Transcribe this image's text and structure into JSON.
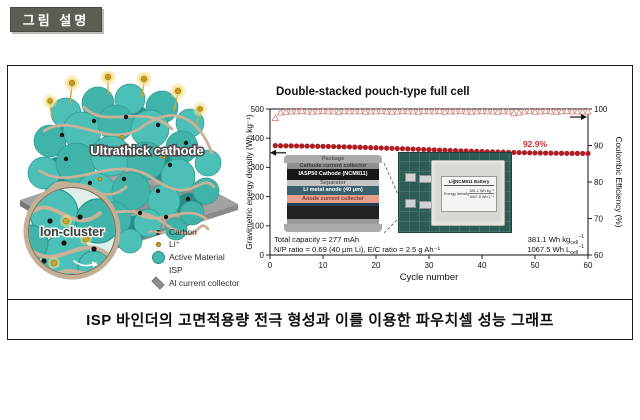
{
  "badge": {
    "label": "그림 설명"
  },
  "caption": "ISP 바인더의 고면적용량 전극 형성과 이를 이용한 파우치셀 성능 그래프",
  "illustration": {
    "cathode_label": "Ultrathick cathode",
    "cluster_label": "Ion-cluster",
    "legend": [
      {
        "id": "carbon",
        "label": "Carbon"
      },
      {
        "id": "li-ion",
        "label": "Li⁺"
      },
      {
        "id": "active-material",
        "label": "Active Material"
      },
      {
        "id": "isp",
        "label": "ISP"
      },
      {
        "id": "al-collector",
        "label": "Al current collector"
      }
    ]
  },
  "chart_data": {
    "type": "scatter",
    "title": "Double-stacked pouch-type full cell",
    "xlabel": "Cycle number",
    "ylabel_left": "Gravimetric energy density (Wh kg⁻¹)",
    "ylabel_right": "Coulombic Efficiency (%)",
    "xlim": [
      0,
      60
    ],
    "ylim_left": [
      0,
      500
    ],
    "ylim_right": [
      60,
      100
    ],
    "x_ticks": [
      0,
      10,
      20,
      30,
      40,
      50,
      60
    ],
    "left_ticks": [
      0,
      100,
      200,
      300,
      400,
      500
    ],
    "right_ticks": [
      60,
      70,
      80,
      90,
      100
    ],
    "x": [
      1,
      2,
      3,
      4,
      5,
      6,
      7,
      8,
      9,
      10,
      11,
      12,
      13,
      14,
      15,
      16,
      17,
      18,
      19,
      20,
      21,
      22,
      23,
      24,
      25,
      26,
      27,
      28,
      29,
      30,
      31,
      32,
      33,
      34,
      35,
      36,
      37,
      38,
      39,
      40,
      41,
      42,
      43,
      44,
      45,
      46,
      47,
      48,
      49,
      50,
      51,
      52,
      53,
      54,
      55,
      56,
      57,
      58,
      59,
      60
    ],
    "series": [
      {
        "name": "Coulombic Efficiency",
        "axis": "right",
        "marker": "triangle-open",
        "color": "#d98b82",
        "values": [
          97.5,
          99.0,
          99.2,
          99.3,
          99.3,
          99.4,
          99.3,
          99.2,
          99.3,
          99.4,
          99.3,
          99.3,
          99.2,
          99.4,
          99.3,
          99.3,
          99.4,
          99.2,
          99.3,
          99.3,
          99.4,
          99.3,
          99.2,
          99.3,
          99.4,
          99.3,
          99.3,
          99.2,
          99.4,
          99.3,
          99.3,
          99.4,
          99.2,
          99.3,
          99.3,
          99.4,
          99.3,
          99.2,
          99.3,
          99.4,
          99.3,
          99.3,
          99.2,
          99.4,
          99.3,
          98.8,
          99.0,
          99.3,
          99.4,
          99.2,
          99.3,
          99.4,
          99.3,
          99.2,
          99.3,
          99.4,
          99.3,
          99.3,
          99.2,
          99.3
        ]
      },
      {
        "name": "Gravimetric energy density",
        "axis": "left",
        "marker": "circle",
        "color": "#ae1d22",
        "values": [
          374.5,
          374.2,
          374.0,
          373.8,
          373.5,
          373.3,
          373.0,
          372.8,
          372.5,
          372.2,
          371.8,
          371.4,
          371.0,
          370.5,
          370.0,
          369.5,
          369.0,
          368.4,
          367.8,
          367.2,
          366.6,
          366.0,
          365.4,
          364.8,
          364.1,
          363.4,
          362.8,
          362.1,
          361.4,
          360.8,
          360.1,
          359.4,
          358.8,
          358.1,
          357.5,
          356.8,
          356.2,
          355.6,
          355.0,
          354.4,
          353.8,
          353.3,
          352.7,
          352.2,
          351.7,
          351.2,
          350.8,
          350.4,
          350.0,
          349.6,
          349.3,
          349.0,
          348.8,
          348.6,
          348.4,
          348.2,
          348.1,
          348.0,
          347.9,
          347.8
        ]
      }
    ],
    "annotations": {
      "retention": "92.9%",
      "total_capacity": "Total capacity = 277 mAh",
      "np_ratio": "N/P ratio = 0.69 (40 μm Li), E/C ratio = 2.5 g Ah⁻¹",
      "grav_cell": {
        "pre": "381.1 Wh kg",
        "sub": "cell",
        "sup": "−1"
      },
      "vol_cell": {
        "pre": "1067.5 Wh L",
        "sub": "cell",
        "sup": "−1"
      }
    },
    "inset_stack": {
      "layers": [
        {
          "label": "Package",
          "bg": "#ababab",
          "fg": "#565656",
          "h": 8,
          "w": "100%",
          "r": "4px 4px 0 0"
        },
        {
          "label": "Cathode current collector",
          "bg": "#8f8f8f",
          "fg": "#3a3a3a",
          "h": 6,
          "w": "94%",
          "r": "0"
        },
        {
          "label": "IASP50 Cathode (NCM811)",
          "bg": "#161616",
          "fg": "#ffffff",
          "h": 11,
          "w": "94%",
          "r": "0"
        },
        {
          "label": "Separator",
          "bg": "#c4c4c4",
          "fg": "#666666",
          "h": 6,
          "w": "94%",
          "r": "0"
        },
        {
          "label": "Li metal anode (40 μm)",
          "bg": "#39626e",
          "fg": "#ffffff",
          "h": 9,
          "w": "94%",
          "r": "0"
        },
        {
          "label": "Anode current collector",
          "bg": "#e79f8d",
          "fg": "#7e4033",
          "h": 8,
          "w": "94%",
          "r": "0"
        },
        {
          "label": "",
          "bg": "#1f3e57",
          "fg": "#ffffff",
          "h": 3,
          "w": "94%",
          "r": "0"
        },
        {
          "label": "",
          "bg": "#222222",
          "fg": "#ffffff",
          "h": 13,
          "w": "94%",
          "r": "0"
        },
        {
          "label": "",
          "bg": "#9a9a9a",
          "fg": "#444444",
          "h": 5,
          "w": "94%",
          "r": "0"
        },
        {
          "label": "",
          "bg": "#ababab",
          "fg": "#565656",
          "h": 8,
          "w": "100%",
          "r": "0 0 4px 4px"
        }
      ]
    },
    "inset_photo": {
      "title": "Li||NCM811 Battery",
      "row_label": "Energy density",
      "value1": "381.1 Wh kg⁻¹",
      "value2": "1067.5 Wh L⁻¹"
    }
  }
}
